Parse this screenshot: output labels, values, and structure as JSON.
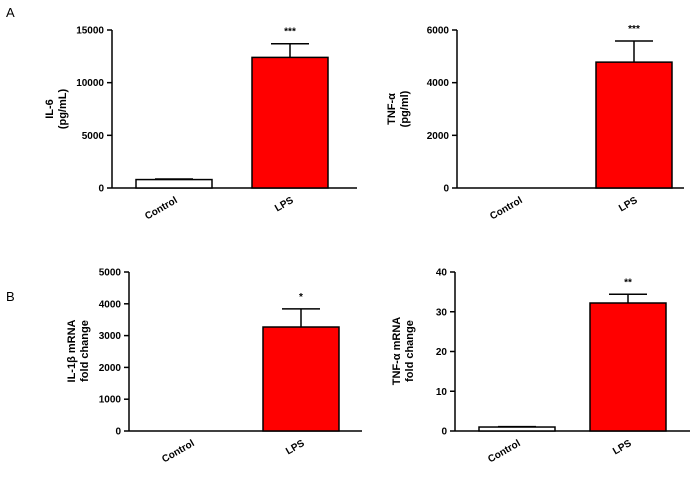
{
  "panels": {
    "a": "A",
    "b": "B"
  },
  "colors": {
    "lps_bar": "#ff0000",
    "control_bar": "#ffffff",
    "stroke": "#000000"
  },
  "chart_data": [
    {
      "type": "bar",
      "panel": "A",
      "categories": [
        "Control",
        "LPS"
      ],
      "values": [
        800,
        12400
      ],
      "errors": [
        60,
        1300
      ],
      "significance": [
        "",
        "***"
      ],
      "ylabel_lines": [
        "IL-6",
        "(pg/mL)"
      ],
      "ylim": [
        0,
        15000
      ],
      "yticks": [
        0,
        5000,
        10000,
        15000
      ]
    },
    {
      "type": "bar",
      "panel": "A",
      "categories": [
        "Control",
        "LPS"
      ],
      "values": [
        0,
        4780
      ],
      "errors": [
        0,
        800
      ],
      "significance": [
        "",
        "***"
      ],
      "ylabel_lines": [
        "TNF-α",
        "(pg/ml)"
      ],
      "ylim": [
        0,
        6000
      ],
      "yticks": [
        0,
        2000,
        4000,
        6000
      ]
    },
    {
      "type": "bar",
      "panel": "B",
      "categories": [
        "Control",
        "LPS"
      ],
      "values": [
        0,
        3270
      ],
      "errors": [
        0,
        570
      ],
      "significance": [
        "",
        "*"
      ],
      "ylabel_lines": [
        "IL-1β mRNA",
        "fold change"
      ],
      "ylim": [
        0,
        5000
      ],
      "yticks": [
        0,
        1000,
        2000,
        3000,
        4000,
        5000
      ]
    },
    {
      "type": "bar",
      "panel": "B",
      "categories": [
        "Control",
        "LPS"
      ],
      "values": [
        1,
        32.2
      ],
      "errors": [
        0.1,
        2.2
      ],
      "significance": [
        "",
        "**"
      ],
      "ylabel_lines": [
        "TNF-α mRNA",
        "fold change"
      ],
      "ylim": [
        0,
        40
      ],
      "yticks": [
        0,
        10,
        20,
        30,
        40
      ]
    }
  ]
}
